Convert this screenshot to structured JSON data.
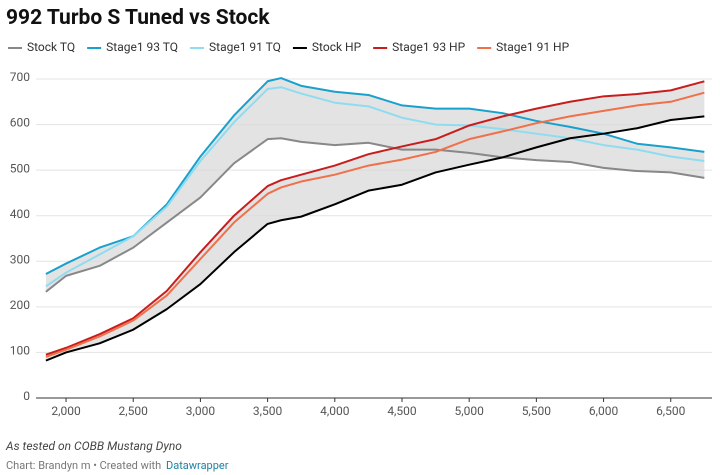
{
  "chart_data": {
    "type": "line",
    "title": "992 Turbo S Tuned vs Stock",
    "notes": "As tested on COBB Mustang Dyno",
    "credit": "Chart: Brandyn m • Created with",
    "credit_link": "Datawrapper",
    "x": [
      1850,
      2000,
      2250,
      2500,
      2750,
      3000,
      3250,
      3500,
      3600,
      3750,
      4000,
      4250,
      4500,
      4750,
      5000,
      5250,
      5500,
      5750,
      6000,
      6250,
      6500,
      6750
    ],
    "series": [
      {
        "name": "Stock TQ",
        "color": "#888888",
        "values": [
          233,
          268,
          290,
          330,
          385,
          440,
          515,
          568,
          570,
          562,
          555,
          560,
          545,
          545,
          538,
          528,
          522,
          518,
          505,
          498,
          495,
          483
        ]
      },
      {
        "name": "Stage1 93 TQ",
        "color": "#18a1cd",
        "values": [
          272,
          295,
          330,
          355,
          425,
          530,
          620,
          695,
          702,
          685,
          672,
          665,
          642,
          635,
          635,
          625,
          608,
          595,
          580,
          558,
          550,
          540
        ]
      },
      {
        "name": "Stage1 91 TQ",
        "color": "#8fdcf0",
        "values": [
          245,
          275,
          315,
          355,
          420,
          520,
          605,
          678,
          682,
          668,
          648,
          640,
          615,
          600,
          598,
          590,
          580,
          570,
          555,
          545,
          530,
          520
        ]
      },
      {
        "name": "Stock HP",
        "color": "#000000",
        "values": [
          82,
          100,
          120,
          150,
          195,
          250,
          320,
          382,
          390,
          398,
          425,
          455,
          468,
          495,
          512,
          528,
          550,
          570,
          580,
          592,
          610,
          618
        ]
      },
      {
        "name": "Stage1 93 HP",
        "color": "#c71e1d",
        "values": [
          95,
          110,
          140,
          175,
          235,
          320,
          400,
          465,
          478,
          490,
          510,
          535,
          552,
          568,
          598,
          618,
          635,
          650,
          662,
          667,
          675,
          695
        ]
      },
      {
        "name": "Stage1 91 HP",
        "color": "#f0704a",
        "values": [
          90,
          106,
          135,
          170,
          225,
          305,
          385,
          448,
          462,
          475,
          490,
          510,
          523,
          540,
          568,
          585,
          603,
          618,
          630,
          642,
          650,
          670
        ]
      }
    ],
    "range_fills": [
      {
        "between": [
          0,
          1
        ],
        "color": "#d9d9d9"
      },
      {
        "between": [
          3,
          4
        ],
        "color": "#d9d9d9"
      }
    ],
    "xlim": [
      1836,
      6740
    ],
    "xticks": [
      {
        "value": 2000,
        "label": "2,000"
      },
      {
        "value": 2500,
        "label": "2,500"
      },
      {
        "value": 3000,
        "label": "3,000"
      },
      {
        "value": 3500,
        "label": "3,500"
      },
      {
        "value": 4000,
        "label": "4,000"
      },
      {
        "value": 4500,
        "label": "4,500"
      },
      {
        "value": 5000,
        "label": "5,000"
      },
      {
        "value": 5500,
        "label": "5,500"
      },
      {
        "value": 6000,
        "label": "6,000"
      },
      {
        "value": 6500,
        "label": "6,500"
      }
    ],
    "ylim": [
      0,
      700
    ],
    "yticks": [
      0,
      100,
      200,
      300,
      400,
      500,
      600,
      700
    ],
    "grid": true,
    "legend": "top"
  }
}
